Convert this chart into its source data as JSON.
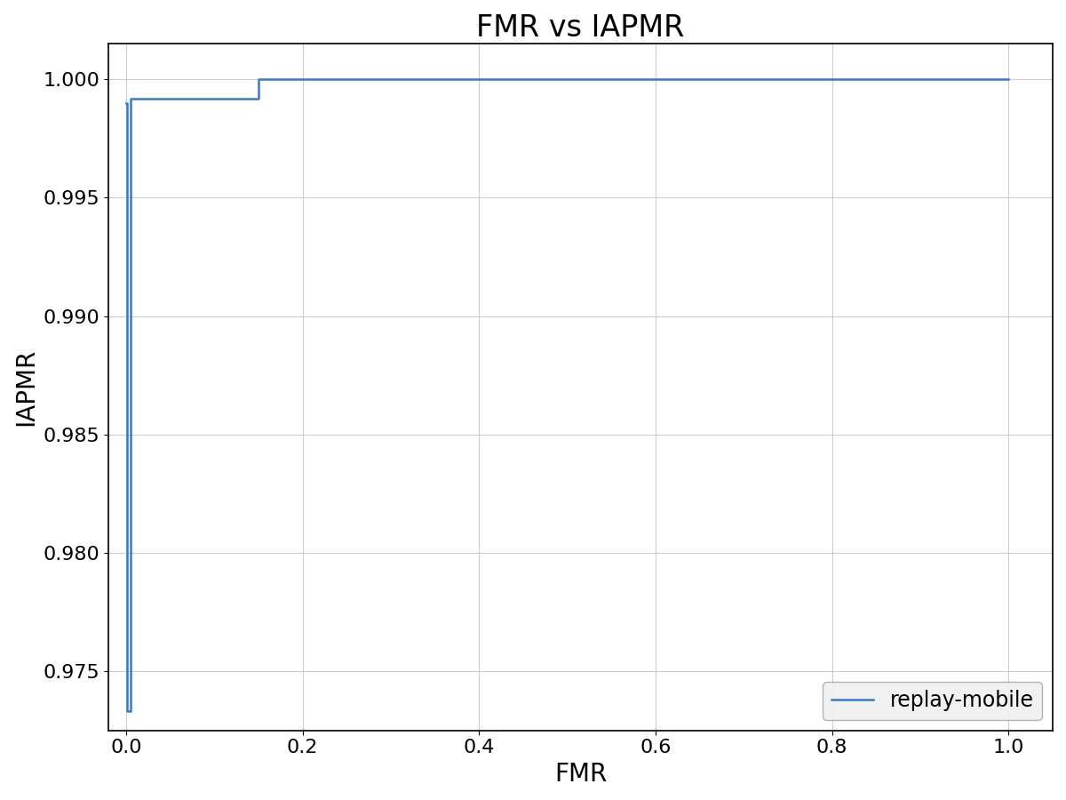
{
  "title": "FMR vs IAPMR",
  "xlabel": "FMR",
  "ylabel": "IAPMR",
  "line_color": "#3a7abf",
  "line_label": "replay-mobile",
  "line_width": 1.8,
  "xlim": [
    -0.02,
    1.05
  ],
  "ylim": [
    0.9725,
    1.0015
  ],
  "x_ticks": [
    0.0,
    0.2,
    0.4,
    0.6,
    0.8,
    1.0
  ],
  "y_ticks": [
    0.975,
    0.98,
    0.985,
    0.99,
    0.995,
    1.0
  ],
  "x_data": [
    0.0,
    0.001,
    0.001,
    0.005,
    0.005,
    0.15,
    0.15,
    0.6,
    0.6,
    1.0
  ],
  "y_data": [
    0.999,
    0.999,
    0.9733,
    0.9733,
    0.9992,
    0.9992,
    1.0,
    1.0,
    1.0,
    1.0
  ],
  "title_fontsize": 24,
  "label_fontsize": 20,
  "tick_fontsize": 16,
  "legend_fontsize": 17,
  "background_color": "#ffffff",
  "grid_color": "#cccccc"
}
